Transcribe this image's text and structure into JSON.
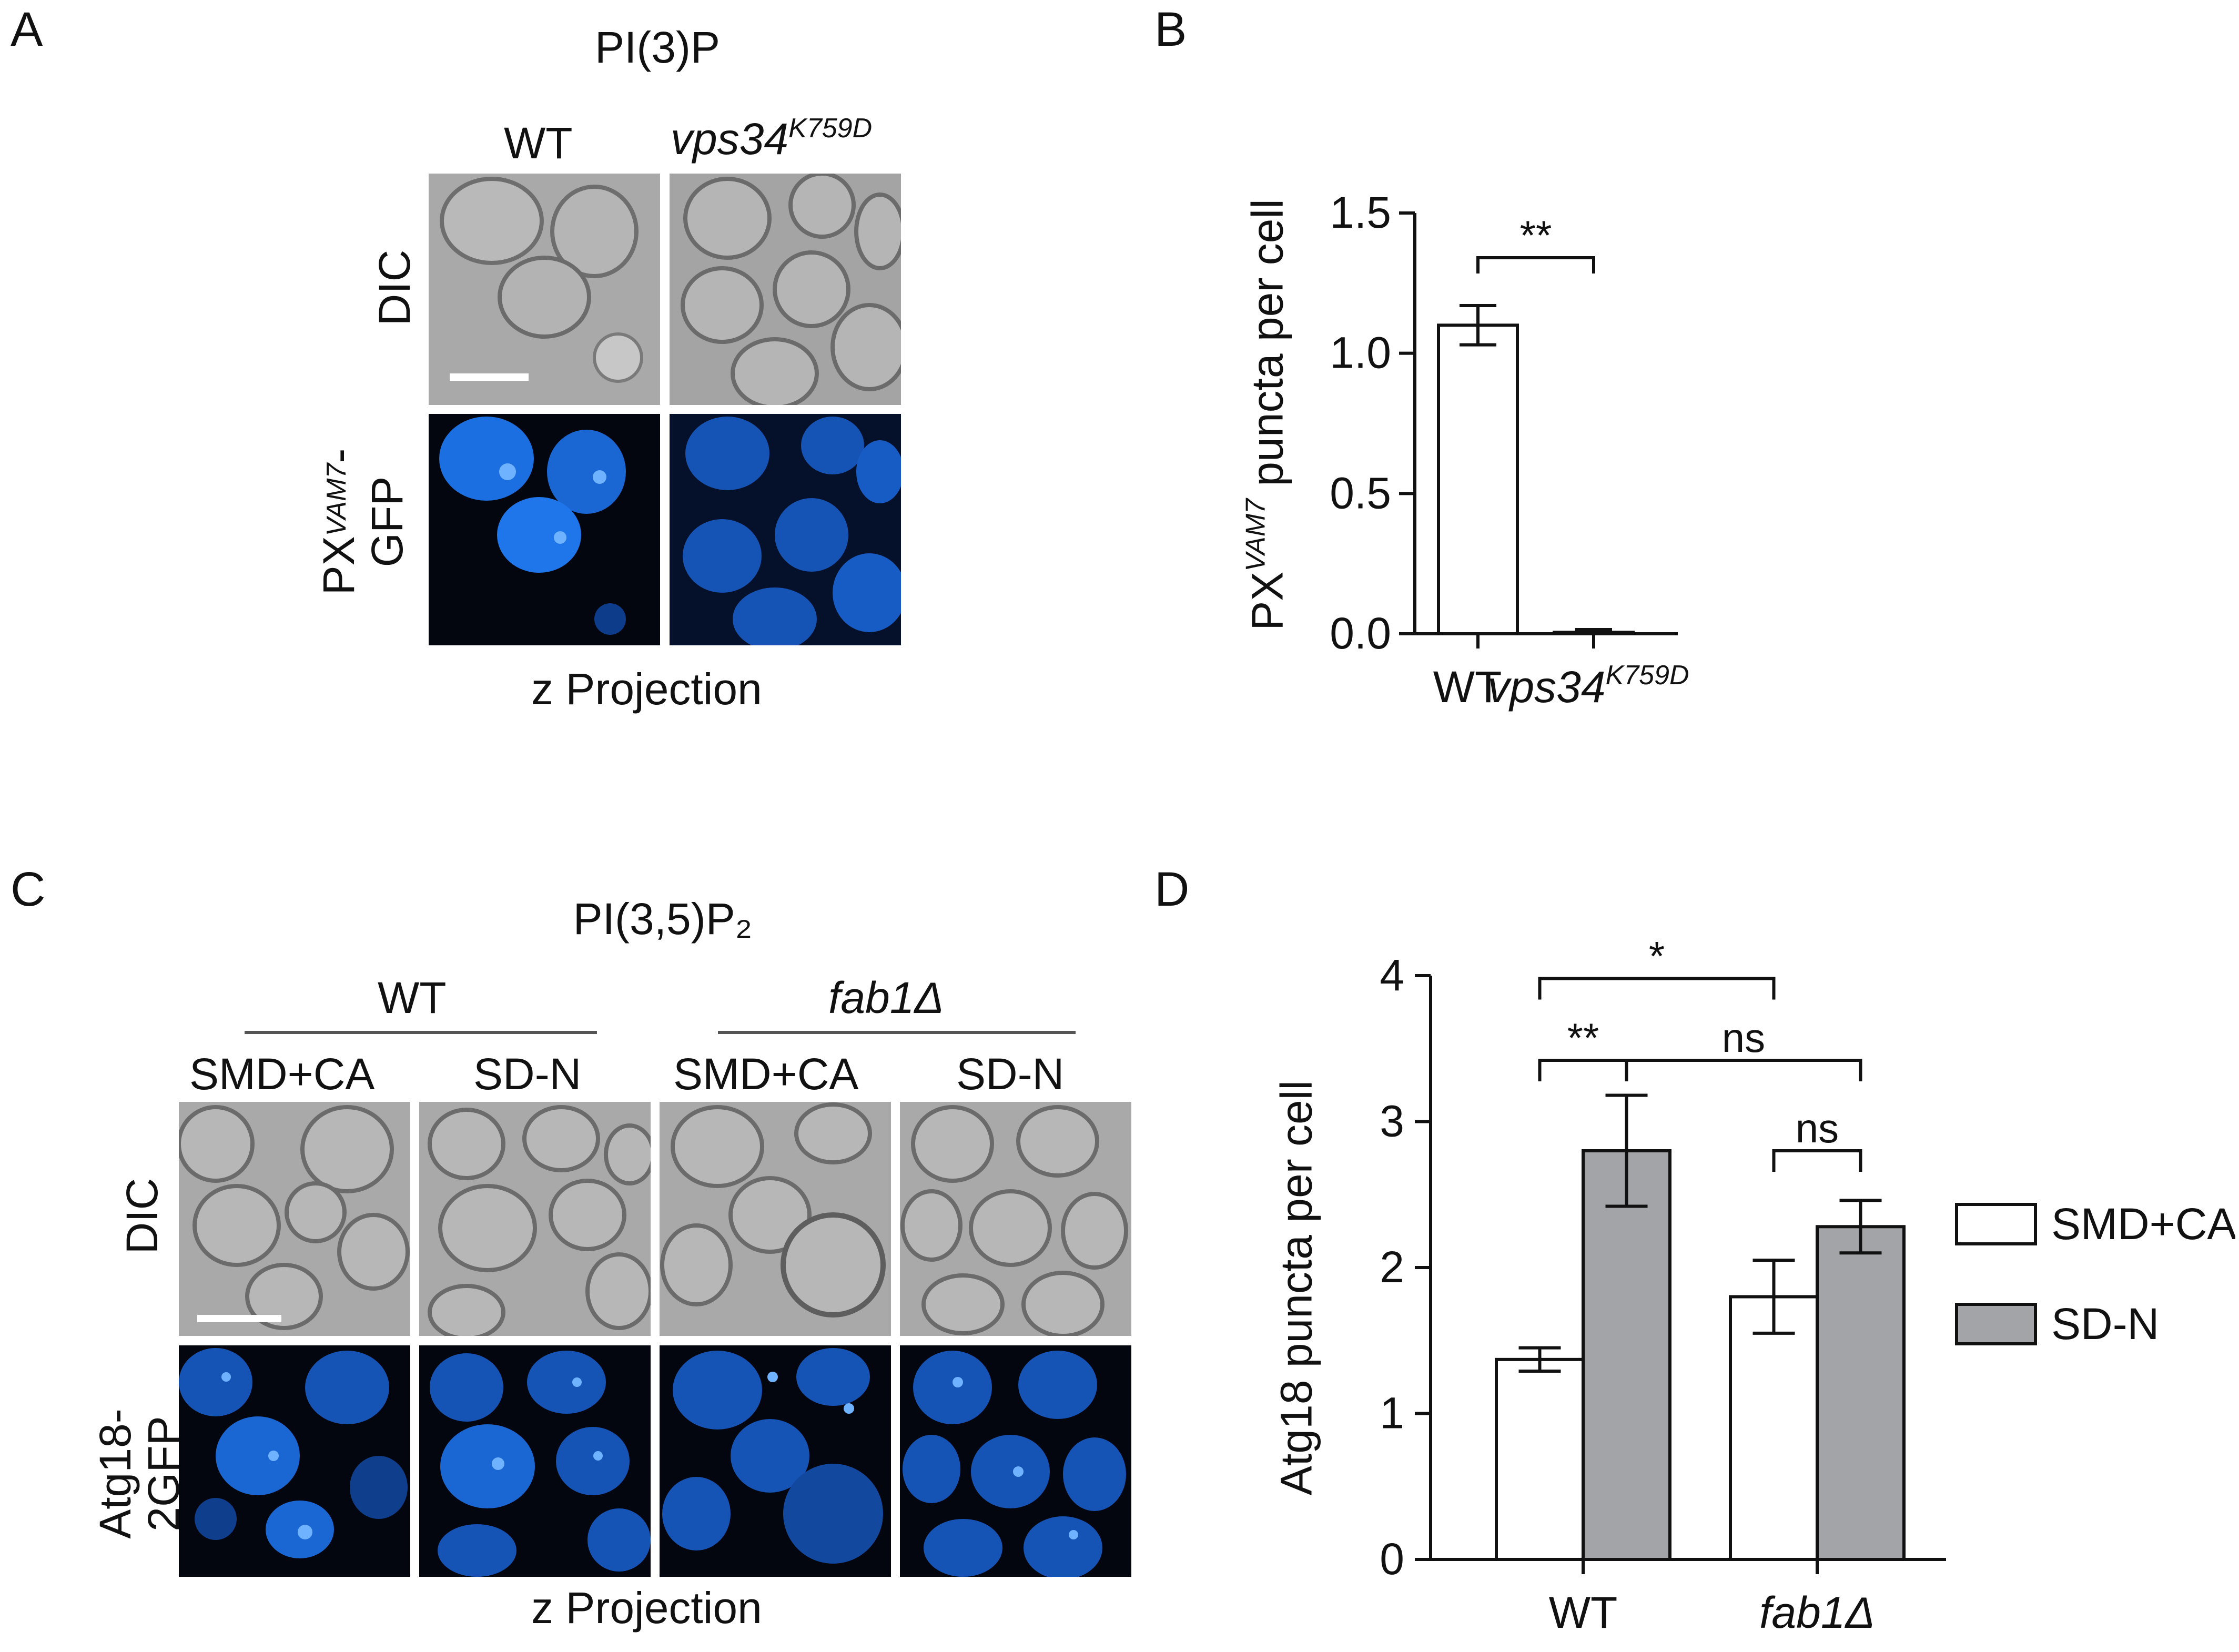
{
  "panel_letters": {
    "a": "A",
    "b": "B",
    "c": "C",
    "d": "D"
  },
  "panel_a": {
    "title": "PI(3)P",
    "col_wt": "WT",
    "col_mut_base": "vps34",
    "col_mut_sup": "K759D",
    "row_dic": "DIC",
    "row_gfp_base": "PX",
    "row_gfp_sup": "VAM7",
    "row_gfp_tail": "-",
    "row_gfp_line2": "GFP",
    "footer": "z Projection"
  },
  "panel_c": {
    "title": "PI(3,5)P₂",
    "group_wt": "WT",
    "group_mut": "fab1Δ",
    "cols": [
      "SMD+CA",
      "SD-N",
      "SMD+CA",
      "SD-N"
    ],
    "row_dic": "DIC",
    "row_gfp_line1": "Atg18-",
    "row_gfp_line2": "2GFP",
    "footer": "z Projection"
  },
  "colors": {
    "dic_bg": "#a9a9a9",
    "gfp_bg": "#03050f",
    "gfp_cell": "#1c6fe0",
    "bar_open": "#ffffff",
    "bar_filled": "#a3a4a8",
    "stroke": "#111111"
  },
  "chart_data": [
    {
      "id": "B",
      "type": "bar",
      "categories": [
        "WT",
        "vps34K759D"
      ],
      "category_labels": [
        {
          "base": "WT",
          "sup": ""
        },
        {
          "base": "vps34",
          "sup": "K759D"
        }
      ],
      "values": [
        1.1,
        0.005
      ],
      "errors": [
        0.07,
        0.01
      ],
      "ylabel_base": "PX",
      "ylabel_sup": "VAM7",
      "ylabel_tail": " puncta per cell",
      "ylim": [
        0,
        1.5
      ],
      "yticks": [
        "0.0",
        "0.5",
        "1.0",
        "1.5"
      ],
      "significance": [
        {
          "from": 0,
          "to": 1,
          "label": "**"
        }
      ]
    },
    {
      "id": "D",
      "type": "bar",
      "categories": [
        "WT",
        "fab1Δ"
      ],
      "series": [
        {
          "name": "SMD+CA",
          "values": [
            1.37,
            1.8
          ],
          "errors": [
            0.08,
            0.25
          ]
        },
        {
          "name": "SD-N",
          "values": [
            2.8,
            2.28
          ],
          "errors": [
            0.38,
            0.18
          ]
        }
      ],
      "ylabel": "Atg18 puncta per cell",
      "ylim": [
        0,
        4
      ],
      "yticks": [
        "0",
        "1",
        "2",
        "3",
        "4"
      ],
      "legend_position": "right",
      "significance": [
        {
          "label": "*"
        },
        {
          "label": "**"
        },
        {
          "label": "ns"
        },
        {
          "label": "ns"
        }
      ]
    }
  ]
}
